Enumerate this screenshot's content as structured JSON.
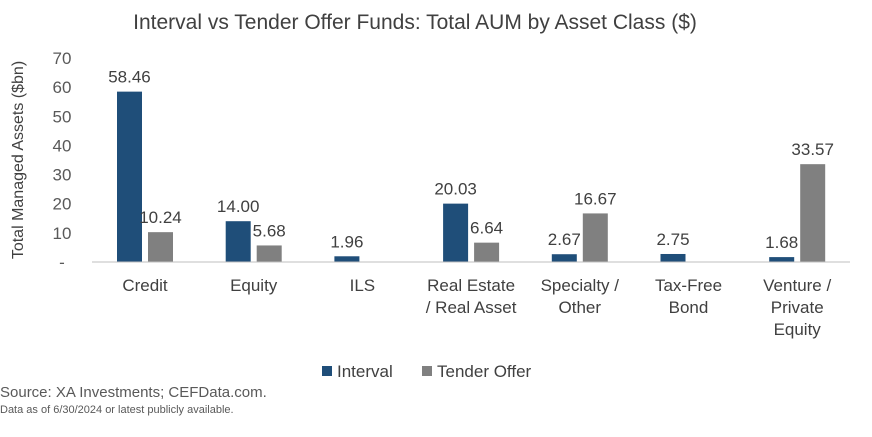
{
  "chart_data": {
    "type": "bar",
    "title": "Interval vs Tender Offer Funds: Total AUM by Asset Class ($)",
    "xlabel": "",
    "ylabel": "Total Managed Assets ($bn)",
    "ylim": [
      0,
      70
    ],
    "yticks": [
      0,
      10,
      20,
      30,
      40,
      50,
      60,
      70
    ],
    "ytick_labels": [
      "-",
      "10",
      "20",
      "30",
      "40",
      "50",
      "60",
      "70"
    ],
    "grid": false,
    "legend_position": "bottom",
    "categories": [
      [
        "Credit"
      ],
      [
        "Equity"
      ],
      [
        "ILS"
      ],
      [
        "Real Estate",
        "/ Real Asset"
      ],
      [
        "Specialty /",
        "Other"
      ],
      [
        "Tax-Free",
        "Bond"
      ],
      [
        "Venture /",
        "Private",
        "Equity"
      ]
    ],
    "series": [
      {
        "name": "Interval",
        "color": "#1F4E79",
        "values": [
          58.46,
          14.0,
          1.96,
          20.03,
          2.67,
          2.75,
          1.68
        ],
        "labels": [
          "58.46",
          "14.00",
          "1.96",
          "20.03",
          "2.67",
          "2.75",
          "1.68"
        ]
      },
      {
        "name": "Tender Offer",
        "color": "#808080",
        "values": [
          10.24,
          5.68,
          null,
          6.64,
          16.67,
          null,
          33.57
        ],
        "labels": [
          "10.24",
          "5.68",
          "",
          "6.64",
          "16.67",
          "",
          "33.57"
        ]
      }
    ]
  },
  "source": "Source: XA Investments; CEFData.com.",
  "note": "Data as of 6/30/2024 or latest publicly available."
}
